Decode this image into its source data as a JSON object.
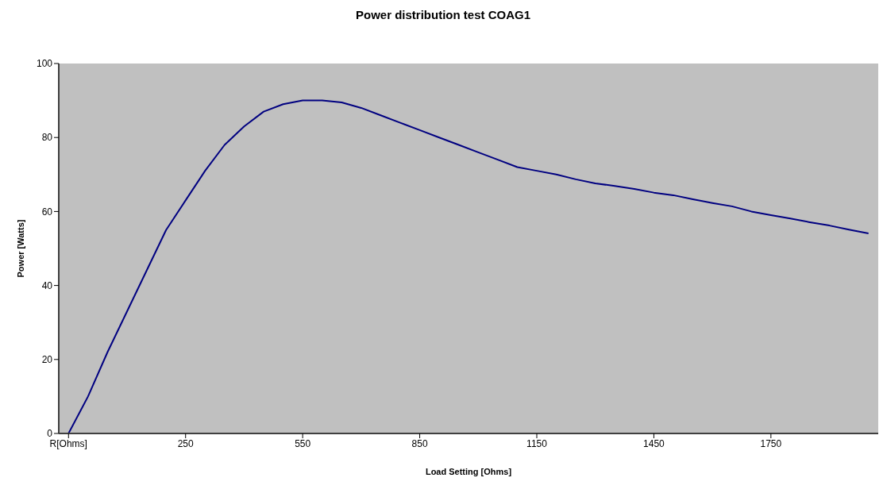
{
  "chart_data": {
    "type": "line",
    "title": "Power distribution test COAG1",
    "xlabel": "Load Setting [Ohms]",
    "ylabel": "Power [Watts]",
    "categories": [
      "R[Ohms]",
      null,
      null,
      null,
      null,
      null,
      "250",
      null,
      null,
      null,
      null,
      null,
      "550",
      null,
      null,
      null,
      null,
      null,
      "850",
      null,
      null,
      null,
      null,
      null,
      "1150",
      null,
      null,
      null,
      null,
      null,
      "1450",
      null,
      null,
      null,
      null,
      null,
      "1750",
      null,
      null,
      null,
      null,
      null
    ],
    "series": [
      {
        "color": "#000080",
        "values": [
          0,
          10,
          22,
          33,
          44,
          55,
          63,
          71,
          78,
          83,
          87,
          89,
          90,
          90,
          89.5,
          88,
          86,
          84,
          82,
          80,
          78,
          76,
          74,
          72,
          71,
          70,
          68.7,
          67.6,
          66.9,
          66.1,
          65.1,
          64.4,
          63.3,
          62.3,
          61.4,
          60,
          59,
          58.1,
          57.1,
          56.2,
          55.1,
          54.1
        ]
      }
    ],
    "ylim": [
      0,
      100
    ],
    "yticks": [
      0,
      20,
      40,
      60,
      80,
      100
    ],
    "grid": false,
    "legend": false,
    "marker": "none",
    "line_style": "solid"
  }
}
